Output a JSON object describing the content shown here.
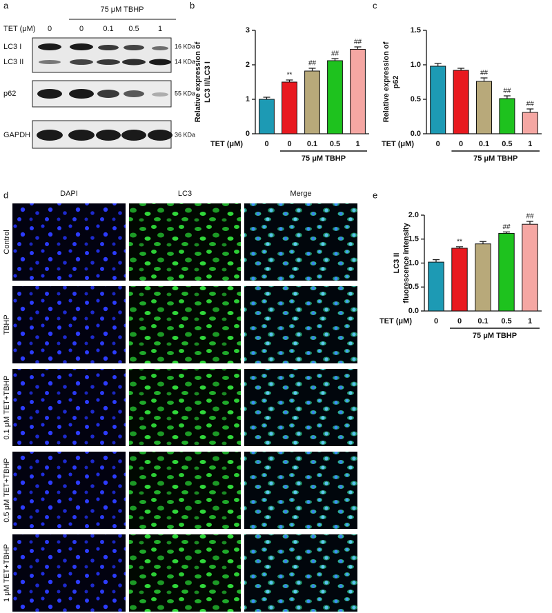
{
  "panel_labels": [
    "a",
    "b",
    "c",
    "d",
    "e"
  ],
  "blot": {
    "treatment": "75 μM TBHP",
    "dose_label": "TET (μM)",
    "lanes": [
      "0",
      "0",
      "0.1",
      "0.5",
      "1"
    ],
    "rows": [
      {
        "labels": [
          "LC3 I",
          "LC3 II"
        ],
        "sizes": [
          "16 KDa",
          "14 KDa"
        ]
      },
      {
        "labels": [
          "p62"
        ],
        "sizes": [
          "55 KDa"
        ]
      },
      {
        "labels": [
          "GAPDH"
        ],
        "sizes": [
          "36 KDa"
        ]
      }
    ]
  },
  "microscopy": {
    "columns": [
      "DAPI",
      "LC3",
      "Merge"
    ],
    "rows": [
      "Control",
      "TBHP",
      "0.1 μM TET+TBHP",
      "0.5 μM TET+TBHP",
      "1 μM TET+TBHP"
    ]
  },
  "chart_data": [
    {
      "type": "bar",
      "ylabel": [
        "Relative expression of",
        "LC3 II/LC3 I"
      ],
      "xlabel": "TET (μM)",
      "group_label": "75 μM TBHP",
      "categories": [
        "0",
        "0",
        "0.1",
        "0.5",
        "1"
      ],
      "values": [
        1.0,
        1.5,
        1.82,
        2.12,
        2.45
      ],
      "errors": [
        0.06,
        0.06,
        0.08,
        0.06,
        0.07
      ],
      "annotations": [
        null,
        "**",
        "##",
        "##",
        "##"
      ],
      "colors": [
        "#1d9ab4",
        "#e8191f",
        "#b8a97a",
        "#1ec21e",
        "#f5a7a3"
      ],
      "ylim": [
        0,
        3
      ],
      "yticks": [
        0,
        1,
        2,
        3
      ]
    },
    {
      "type": "bar",
      "ylabel": [
        "Relative expression of",
        "p62"
      ],
      "xlabel": "TET (μM)",
      "group_label": "75 μM TBHP",
      "categories": [
        "0",
        "0",
        "0.1",
        "0.5",
        "1"
      ],
      "values": [
        0.98,
        0.92,
        0.76,
        0.51,
        0.31
      ],
      "errors": [
        0.04,
        0.03,
        0.05,
        0.04,
        0.05
      ],
      "annotations": [
        null,
        null,
        "##",
        "##",
        "##"
      ],
      "colors": [
        "#1d9ab4",
        "#e8191f",
        "#b8a97a",
        "#1ec21e",
        "#f5a7a3"
      ],
      "ylim": [
        0,
        1.5
      ],
      "yticks": [
        {
          "value": 0,
          "label": "0.0"
        },
        0.5,
        {
          "value": 1,
          "label": "1.0"
        },
        1.5
      ]
    },
    {
      "type": "bar",
      "ylabel": [
        "LC3 II",
        "fluorescence intensity"
      ],
      "xlabel": "TET (μM)",
      "group_label": "75 μM TBHP",
      "categories": [
        "0",
        "0",
        "0.1",
        "0.5",
        "1"
      ],
      "values": [
        1.02,
        1.31,
        1.4,
        1.62,
        1.81
      ],
      "errors": [
        0.05,
        0.03,
        0.05,
        0.03,
        0.06
      ],
      "annotations": [
        null,
        "**",
        null,
        "##",
        "##"
      ],
      "colors": [
        "#1d9ab4",
        "#e8191f",
        "#b8a97a",
        "#1ec21e",
        "#f5a7a3"
      ],
      "ylim": [
        0,
        2
      ],
      "yticks": [
        {
          "value": 0,
          "label": "0.0"
        },
        0.5,
        {
          "value": 1,
          "label": "1.0"
        },
        1.5,
        {
          "value": 2,
          "label": "2.0"
        }
      ]
    }
  ]
}
